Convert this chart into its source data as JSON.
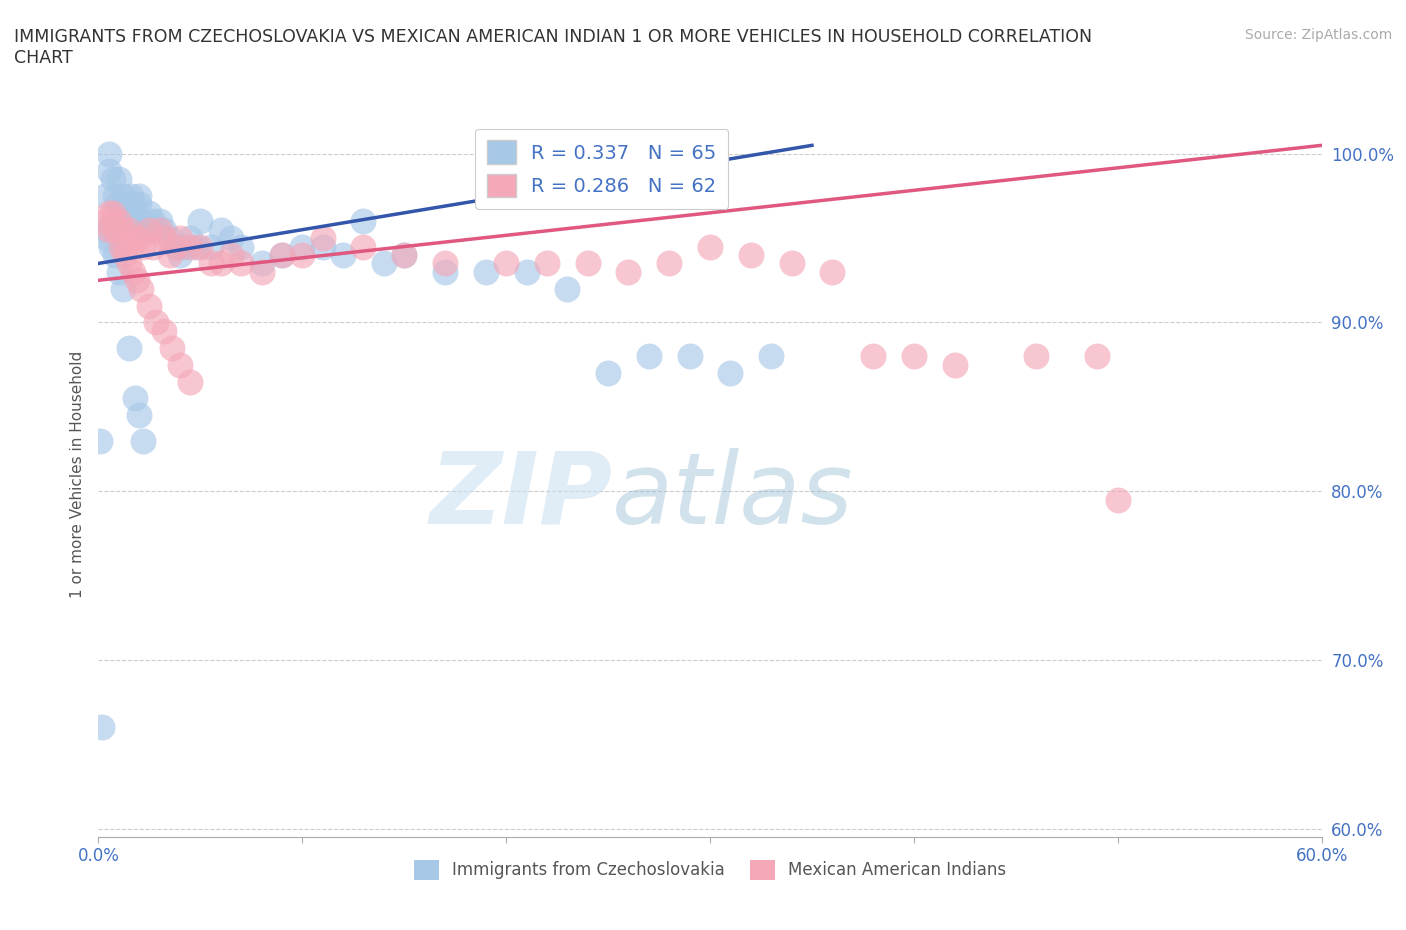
{
  "title": "IMMIGRANTS FROM CZECHOSLOVAKIA VS MEXICAN AMERICAN INDIAN 1 OR MORE VEHICLES IN HOUSEHOLD CORRELATION\nCHART",
  "source_text": "Source: ZipAtlas.com",
  "ylabel": "1 or more Vehicles in Household",
  "xlim": [
    0.0,
    0.6
  ],
  "ylim": [
    0.595,
    1.025
  ],
  "xticks": [
    0.0,
    0.1,
    0.2,
    0.3,
    0.4,
    0.5,
    0.6
  ],
  "xticklabels": [
    "0.0%",
    "",
    "",
    "",
    "",
    "",
    "60.0%"
  ],
  "yticks": [
    0.6,
    0.7,
    0.8,
    0.9,
    1.0
  ],
  "yticklabels": [
    "60.0%",
    "70.0%",
    "80.0%",
    "90.0%",
    "100.0%"
  ],
  "blue_R": 0.337,
  "blue_N": 65,
  "pink_R": 0.286,
  "pink_N": 62,
  "blue_color": "#a8c8e8",
  "pink_color": "#f4a8b8",
  "blue_line_color": "#3355aa",
  "pink_line_color": "#e05880",
  "legend_label_blue": "Immigrants from Czechoslovakia",
  "legend_label_pink": "Mexican American Indians",
  "watermark_zip": "ZIP",
  "watermark_atlas": "atlas",
  "blue_x": [
    0.003,
    0.005,
    0.005,
    0.007,
    0.008,
    0.009,
    0.01,
    0.01,
    0.012,
    0.013,
    0.015,
    0.015,
    0.016,
    0.017,
    0.018,
    0.018,
    0.02,
    0.02,
    0.022,
    0.023,
    0.025,
    0.027,
    0.028,
    0.03,
    0.032,
    0.035,
    0.038,
    0.04,
    0.042,
    0.045,
    0.048,
    0.05,
    0.055,
    0.06,
    0.065,
    0.07,
    0.08,
    0.09,
    0.1,
    0.11,
    0.12,
    0.13,
    0.14,
    0.15,
    0.17,
    0.19,
    0.21,
    0.23,
    0.25,
    0.27,
    0.29,
    0.31,
    0.33,
    0.003,
    0.004,
    0.006,
    0.008,
    0.01,
    0.012,
    0.015,
    0.018,
    0.02,
    0.022,
    0.001,
    0.002
  ],
  "blue_y": [
    0.975,
    1.0,
    0.99,
    0.985,
    0.975,
    0.97,
    0.965,
    0.985,
    0.975,
    0.97,
    0.965,
    0.96,
    0.975,
    0.97,
    0.965,
    0.96,
    0.975,
    0.97,
    0.96,
    0.955,
    0.965,
    0.96,
    0.955,
    0.96,
    0.955,
    0.95,
    0.945,
    0.94,
    0.945,
    0.95,
    0.945,
    0.96,
    0.945,
    0.955,
    0.95,
    0.945,
    0.935,
    0.94,
    0.945,
    0.945,
    0.94,
    0.96,
    0.935,
    0.94,
    0.93,
    0.93,
    0.93,
    0.92,
    0.87,
    0.88,
    0.88,
    0.87,
    0.88,
    0.955,
    0.95,
    0.945,
    0.94,
    0.93,
    0.92,
    0.885,
    0.855,
    0.845,
    0.83,
    0.83,
    0.66
  ],
  "pink_x": [
    0.003,
    0.005,
    0.007,
    0.008,
    0.01,
    0.012,
    0.013,
    0.015,
    0.016,
    0.018,
    0.02,
    0.022,
    0.025,
    0.027,
    0.03,
    0.032,
    0.035,
    0.038,
    0.04,
    0.045,
    0.05,
    0.055,
    0.06,
    0.065,
    0.07,
    0.08,
    0.09,
    0.1,
    0.11,
    0.13,
    0.15,
    0.17,
    0.2,
    0.22,
    0.24,
    0.26,
    0.28,
    0.3,
    0.32,
    0.34,
    0.36,
    0.38,
    0.4,
    0.42,
    0.46,
    0.49,
    0.5,
    0.005,
    0.007,
    0.009,
    0.011,
    0.013,
    0.015,
    0.017,
    0.019,
    0.021,
    0.025,
    0.028,
    0.032,
    0.036,
    0.04,
    0.045
  ],
  "pink_y": [
    0.96,
    0.955,
    0.965,
    0.955,
    0.96,
    0.955,
    0.945,
    0.955,
    0.945,
    0.95,
    0.95,
    0.945,
    0.955,
    0.945,
    0.955,
    0.95,
    0.94,
    0.945,
    0.95,
    0.945,
    0.945,
    0.935,
    0.935,
    0.94,
    0.935,
    0.93,
    0.94,
    0.94,
    0.95,
    0.945,
    0.94,
    0.935,
    0.935,
    0.935,
    0.935,
    0.93,
    0.935,
    0.945,
    0.94,
    0.935,
    0.93,
    0.88,
    0.88,
    0.875,
    0.88,
    0.88,
    0.795,
    0.965,
    0.96,
    0.955,
    0.945,
    0.94,
    0.935,
    0.93,
    0.925,
    0.92,
    0.91,
    0.9,
    0.895,
    0.885,
    0.875,
    0.865
  ],
  "blue_line_x": [
    0.0,
    0.35
  ],
  "blue_line_y": [
    0.935,
    1.005
  ],
  "pink_line_x": [
    0.0,
    0.6
  ],
  "pink_line_y": [
    0.925,
    1.005
  ]
}
